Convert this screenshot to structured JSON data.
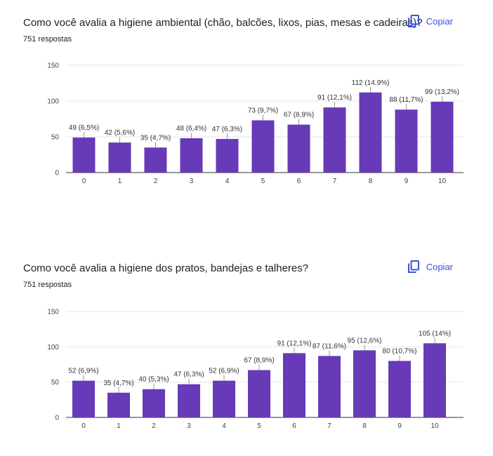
{
  "actions": {
    "copy_label": "Copiar"
  },
  "questions": [
    {
      "title": "Como você avalia a higiene ambiental (chão, balcões, lixos, pias, mesas e cadeiras)?",
      "responses": "751 respostas"
    },
    {
      "title": "Como você avalia a higiene dos pratos, bandejas e talheres?",
      "responses": "751 respostas"
    }
  ],
  "colors": {
    "bar": "#673ab7",
    "accent": "#3b53d8",
    "grid": "#e6e6e6"
  },
  "icons": {
    "copy": "copy-icon"
  },
  "chart_data": [
    {
      "type": "bar",
      "categories": [
        "0",
        "1",
        "2",
        "3",
        "4",
        "5",
        "6",
        "7",
        "8",
        "9",
        "10"
      ],
      "values": [
        49,
        42,
        35,
        48,
        47,
        73,
        67,
        91,
        112,
        88,
        99
      ],
      "data_labels": [
        "49 (6,5%)",
        "42 (5,6%)",
        "35 (4,7%)",
        "48 (6,4%)",
        "47 (6,3%)",
        "73 (9,7%)",
        "67 (8,9%)",
        "91 (12,1%)",
        "112 (14,9%)",
        "88 (11,7%)",
        "99 (13,2%)"
      ],
      "yticks": [
        0,
        50,
        100,
        150
      ],
      "ylim": [
        0,
        150
      ],
      "grid": true
    },
    {
      "type": "bar",
      "categories": [
        "0",
        "1",
        "2",
        "3",
        "4",
        "5",
        "6",
        "7",
        "8",
        "9",
        "10"
      ],
      "values": [
        52,
        35,
        40,
        47,
        52,
        67,
        91,
        87,
        95,
        80,
        105
      ],
      "data_labels": [
        "52 (6,9%)",
        "35 (4,7%)",
        "40 (5,3%)",
        "47 (6,3%)",
        "52 (6,9%)",
        "67 (8,9%)",
        "91 (12,1%)",
        "87 (11,6%)",
        "95 (12,6%)",
        "80 (10,7%)",
        "105 (14%)"
      ],
      "yticks": [
        0,
        50,
        100,
        150
      ],
      "ylim": [
        0,
        150
      ],
      "grid": true
    }
  ]
}
